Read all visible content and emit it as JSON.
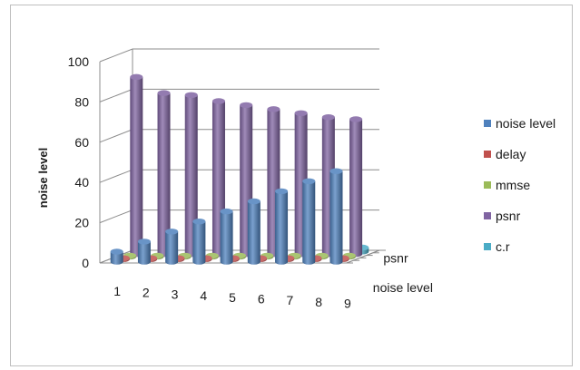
{
  "chart_data": {
    "type": "bar",
    "subtype": "3d-cylinder-column",
    "title": "",
    "xlabel": "",
    "ylabel": "noise level",
    "categories": [
      "1",
      "2",
      "3",
      "4",
      "5",
      "6",
      "7",
      "8",
      "9"
    ],
    "depth_labels": [
      "noise level",
      "psnr"
    ],
    "y_ticks": [
      "0",
      "20",
      "40",
      "60",
      "80",
      "100"
    ],
    "ylim": [
      0,
      100
    ],
    "grid": true,
    "legend_position": "right",
    "series": [
      {
        "name": "noise level",
        "color": "#4f81bd",
        "values": [
          5,
          10,
          15,
          20,
          25,
          30,
          35,
          40,
          45
        ]
      },
      {
        "name": "delay",
        "color": "#c0504d",
        "values": [
          0.5,
          0.5,
          0.5,
          0.5,
          0.5,
          0.5,
          0.5,
          0.5,
          0.5
        ]
      },
      {
        "name": "mmse",
        "color": "#9bbb59",
        "values": [
          0.5,
          0.5,
          0.5,
          0.5,
          0.5,
          0.5,
          0.5,
          0.5,
          0.5
        ]
      },
      {
        "name": "psnr",
        "color": "#8064a2",
        "values": [
          88,
          80,
          79,
          76,
          74,
          72,
          70,
          68,
          67
        ]
      },
      {
        "name": "c.r",
        "color": "#4bacc6",
        "values": [
          2,
          2,
          2,
          2,
          2,
          2,
          2,
          2,
          2
        ]
      }
    ]
  }
}
